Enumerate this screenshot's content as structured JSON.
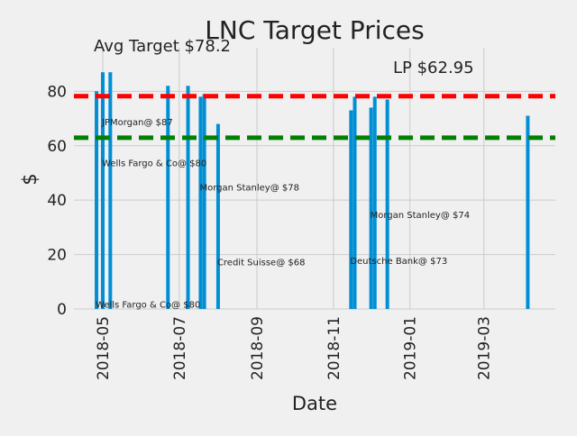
{
  "chart_data": {
    "type": "bar",
    "title": "LNC Target Prices",
    "xlabel": "Date",
    "ylabel": "$",
    "ylim": [
      0,
      96
    ],
    "xlim": [
      "2018-04-08",
      "2019-04-27"
    ],
    "grid": true,
    "x_ticks": [
      "2018-05",
      "2018-07",
      "2018-09",
      "2018-11",
      "2019-01",
      "2019-03"
    ],
    "y_ticks": [
      0,
      20,
      40,
      60,
      80
    ],
    "bars": [
      {
        "date": "2018-04-26",
        "value": 80
      },
      {
        "date": "2018-05-01",
        "value": 87
      },
      {
        "date": "2018-05-07",
        "value": 87
      },
      {
        "date": "2018-06-22",
        "value": 82
      },
      {
        "date": "2018-07-08",
        "value": 82
      },
      {
        "date": "2018-07-18",
        "value": 78
      },
      {
        "date": "2018-07-21",
        "value": 79
      },
      {
        "date": "2018-08-01",
        "value": 68
      },
      {
        "date": "2018-11-15",
        "value": 73
      },
      {
        "date": "2018-11-18",
        "value": 78
      },
      {
        "date": "2018-12-01",
        "value": 74
      },
      {
        "date": "2018-12-04",
        "value": 78
      },
      {
        "date": "2018-12-14",
        "value": 77
      },
      {
        "date": "2019-04-05",
        "value": 71
      }
    ],
    "annotations": [
      {
        "text": "JPMorgan@ $87",
        "date": "2018-05-01",
        "value": 67.5
      },
      {
        "text": "Wells Fargo & Co@ $80",
        "date": "2018-05-01",
        "value": 52.5
      },
      {
        "text": "Morgan Stanley@ $78",
        "date": "2018-07-18",
        "value": 43.5
      },
      {
        "text": "Credit Suisse@ $68",
        "date": "2018-08-01",
        "value": 16
      },
      {
        "text": "Deutsche Bank@ $73",
        "date": "2018-11-15",
        "value": 16.5
      },
      {
        "text": "Morgan Stanley@ $74",
        "date": "2018-12-01",
        "value": 33.5
      },
      {
        "text": "Wells Fargo & Co@ $80",
        "date": "2018-04-26",
        "value": 0.5
      }
    ],
    "reference_lines": [
      {
        "label": "Avg Target $78.2",
        "value": 78.2,
        "color": "#ff0000"
      },
      {
        "label": "LP $62.95",
        "value": 62.95,
        "color": "#008000"
      }
    ],
    "bar_color": "#008fd5"
  }
}
